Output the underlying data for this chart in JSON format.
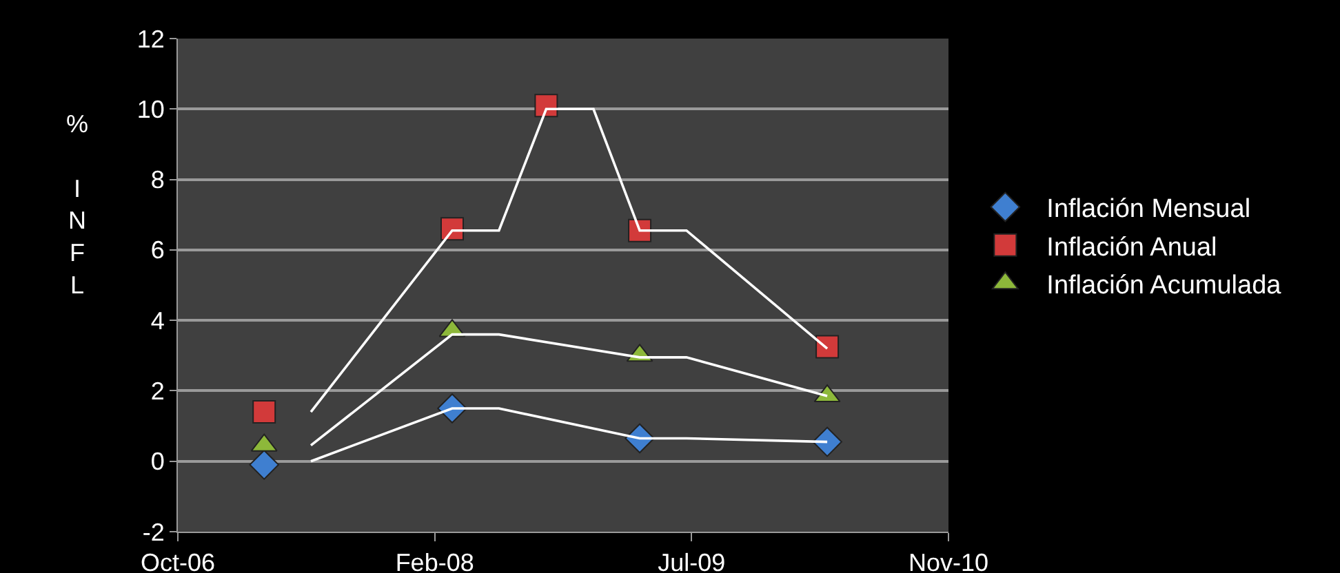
{
  "chart_data": {
    "type": "scatter",
    "ylabel": "% INFL",
    "xlim": [
      "2006-10-15",
      "2010-11-23"
    ],
    "xticks": [
      {
        "value": "2006-10-15",
        "label": "Oct-06"
      },
      {
        "value": "2008-02-27",
        "label": "Feb-08"
      },
      {
        "value": "2009-07-11",
        "label": "Jul-09"
      },
      {
        "value": "2010-11-23",
        "label": "Nov-10"
      }
    ],
    "ylim": [
      -2,
      12
    ],
    "yticks": [
      -2,
      0,
      2,
      4,
      6,
      8,
      10,
      12
    ],
    "grid": "y",
    "legend": "right",
    "series": [
      {
        "name": "Inflación Mensual",
        "color": "#3f7fd0",
        "marker": "diamond",
        "x": [
          "2007-04",
          "2008-04",
          "2009-04",
          "2010-04"
        ],
        "values": [
          -0.1,
          1.5,
          0.65,
          0.55
        ]
      },
      {
        "name": "Inflación Anual",
        "color": "#d23a3a",
        "marker": "square",
        "x": [
          "2007-04",
          "2008-04",
          "2008-10",
          "2009-04",
          "2010-04"
        ],
        "values": [
          1.4,
          6.6,
          10.1,
          6.55,
          3.25
        ]
      },
      {
        "name": "Inflación Acumulada",
        "color": "#8db83a",
        "marker": "triangle",
        "x": [
          "2007-04",
          "2008-04",
          "2009-04",
          "2010-04"
        ],
        "values": [
          0.45,
          3.7,
          3.0,
          1.85
        ]
      },
      {
        "type": "line",
        "color": "#ffffff",
        "marker": "none",
        "x": [
          "2007-07",
          "2008-04",
          "2008-07",
          "2009-04",
          "2009-07",
          "2010-04"
        ],
        "values": [
          0,
          1.5,
          1.5,
          0.65,
          0.65,
          0.55
        ]
      },
      {
        "type": "line",
        "color": "#ffffff",
        "marker": "none",
        "x": [
          "2007-07",
          "2008-04",
          "2008-07",
          "2008-10",
          "2009-01",
          "2009-04",
          "2009-07",
          "2010-04"
        ],
        "values": [
          1.4,
          6.55,
          6.55,
          10,
          10,
          6.55,
          6.55,
          3.2
        ]
      },
      {
        "type": "line",
        "color": "#ffffff",
        "marker": "none",
        "x": [
          "2007-07",
          "2008-04",
          "2008-07",
          "2009-04",
          "2009-07",
          "2010-04"
        ],
        "values": [
          0.45,
          3.6,
          3.6,
          2.95,
          2.95,
          1.85
        ]
      }
    ]
  }
}
